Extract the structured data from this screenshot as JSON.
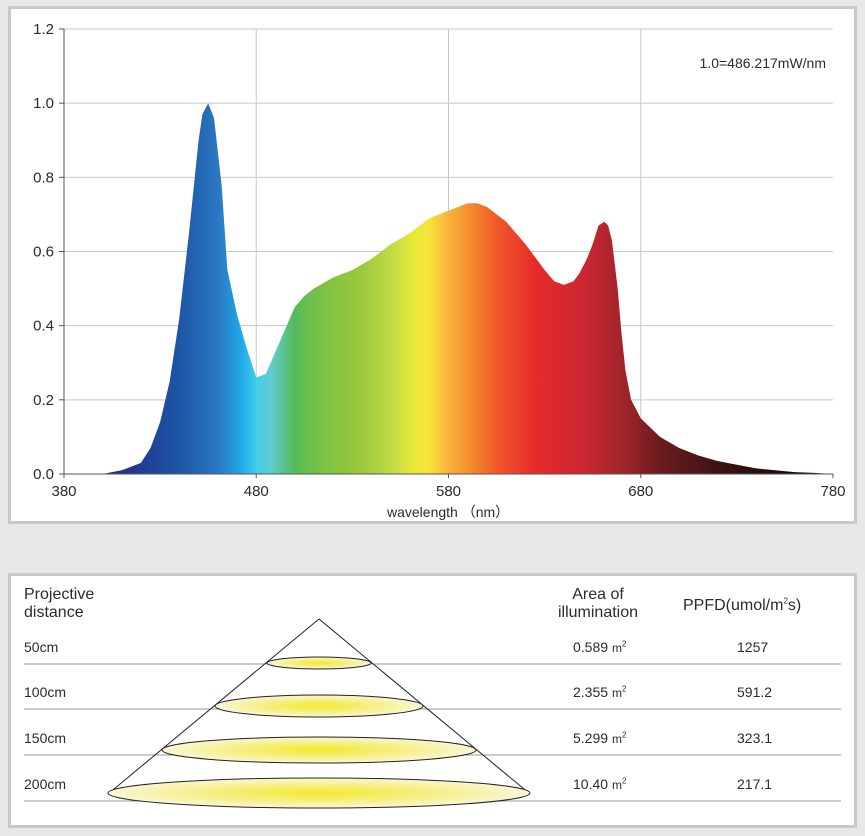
{
  "chart_data": {
    "type": "area",
    "xlabel": "wavelength （nm）",
    "ylabel": "",
    "xlim": [
      380,
      780
    ],
    "ylim": [
      0,
      1.2
    ],
    "x_ticks": [
      "380",
      "480",
      "580",
      "680",
      "780"
    ],
    "y_ticks": [
      "0.0",
      "0.2",
      "0.4",
      "0.6",
      "0.8",
      "1.0",
      "1.2"
    ],
    "grid": true,
    "annotation": "1.0=486.217mW/nm",
    "series": [
      {
        "x": [
          380,
          400,
          410,
          420,
          425,
          430,
          435,
          440,
          445,
          450,
          452,
          455,
          458,
          462,
          465,
          470,
          475,
          480,
          485,
          490,
          495,
          500,
          505,
          510,
          520,
          530,
          540,
          550,
          560,
          570,
          580,
          585,
          590,
          595,
          600,
          605,
          610,
          620,
          630,
          635,
          640,
          645,
          648,
          652,
          655,
          658,
          661,
          663,
          665,
          668,
          670,
          672,
          675,
          680,
          690,
          700,
          710,
          720,
          730,
          740,
          750,
          760,
          770,
          780
        ],
        "values": [
          0,
          0,
          0.01,
          0.03,
          0.07,
          0.14,
          0.25,
          0.42,
          0.65,
          0.9,
          0.97,
          1.0,
          0.96,
          0.78,
          0.55,
          0.43,
          0.34,
          0.26,
          0.27,
          0.33,
          0.39,
          0.45,
          0.48,
          0.5,
          0.53,
          0.55,
          0.58,
          0.62,
          0.65,
          0.69,
          0.71,
          0.72,
          0.73,
          0.73,
          0.72,
          0.7,
          0.68,
          0.62,
          0.55,
          0.52,
          0.51,
          0.52,
          0.54,
          0.58,
          0.62,
          0.67,
          0.68,
          0.67,
          0.63,
          0.5,
          0.38,
          0.28,
          0.2,
          0.15,
          0.1,
          0.07,
          0.05,
          0.035,
          0.025,
          0.015,
          0.01,
          0.005,
          0.003,
          0
        ]
      }
    ]
  },
  "table": {
    "header": {
      "distance": [
        "Projective",
        "distance"
      ],
      "area": [
        "Area of",
        "illumination"
      ],
      "ppfd_prefix": "PPFD(umol/m",
      "ppfd_sup": "2",
      "ppfd_suffix": "s)"
    },
    "unit": "m",
    "unit_sup": "2",
    "rows": [
      {
        "distance": "50cm",
        "area": "0.589",
        "ppfd": "1257"
      },
      {
        "distance": "100cm",
        "area": "2.355",
        "ppfd": "591.2"
      },
      {
        "distance": "150cm",
        "area": "5.299",
        "ppfd": "323.1"
      },
      {
        "distance": "200cm",
        "area": "10.40",
        "ppfd": "217.1"
      }
    ]
  }
}
